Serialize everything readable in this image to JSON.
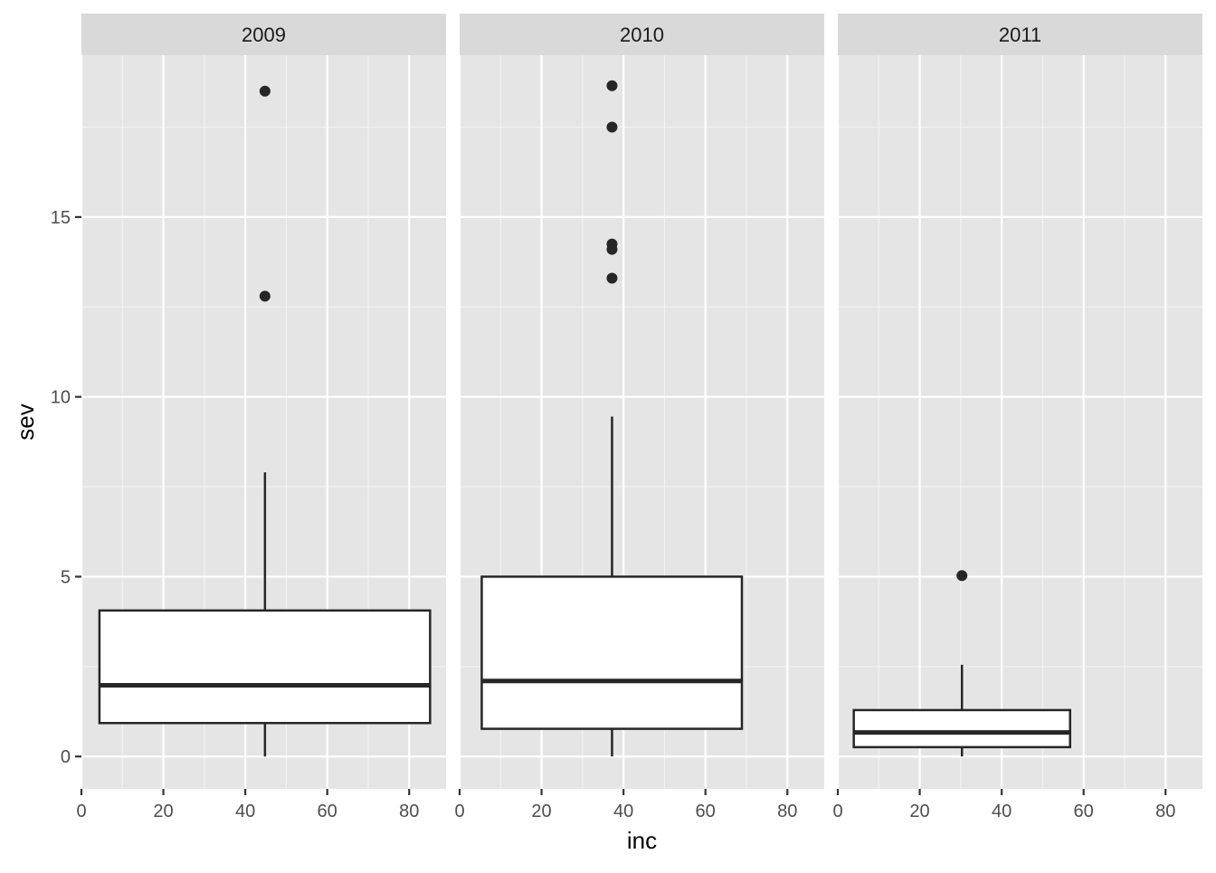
{
  "chart_data": {
    "type": "boxplot",
    "facet_labels": [
      "2009",
      "2010",
      "2011"
    ],
    "xlabel": "inc",
    "ylabel": "sev",
    "x_ticks": [
      "0",
      "20",
      "40",
      "60",
      "80"
    ],
    "y_ticks": [
      "0",
      "5",
      "10",
      "15"
    ],
    "xlim": [
      0,
      89
    ],
    "ylim": [
      -0.9,
      19.5
    ],
    "grid": true,
    "panel_background": "#E5E5E5",
    "strip_background": "#D9D9D9",
    "box_fill": "#FFFFFF",
    "line_color": "#262626",
    "panels": [
      {
        "facet": "2009",
        "x_left": 4.4,
        "x_right": 85.1,
        "x_mid": 44.8,
        "whisker_low": 0.0,
        "q1": 0.93,
        "median": 1.98,
        "q3": 4.06,
        "whisker_high": 7.9,
        "outliers": [
          12.8,
          18.5
        ]
      },
      {
        "facet": "2010",
        "x_left": 5.4,
        "x_right": 68.9,
        "x_mid": 37.2,
        "whisker_low": 0.0,
        "q1": 0.77,
        "median": 2.1,
        "q3": 5.0,
        "whisker_high": 9.45,
        "outliers": [
          13.3,
          14.1,
          14.25,
          17.5,
          18.65
        ]
      },
      {
        "facet": "2011",
        "x_left": 3.9,
        "x_right": 56.7,
        "x_mid": 30.3,
        "whisker_low": 0.0,
        "q1": 0.26,
        "median": 0.67,
        "q3": 1.29,
        "whisker_high": 2.55,
        "outliers": [
          5.03
        ]
      }
    ]
  }
}
